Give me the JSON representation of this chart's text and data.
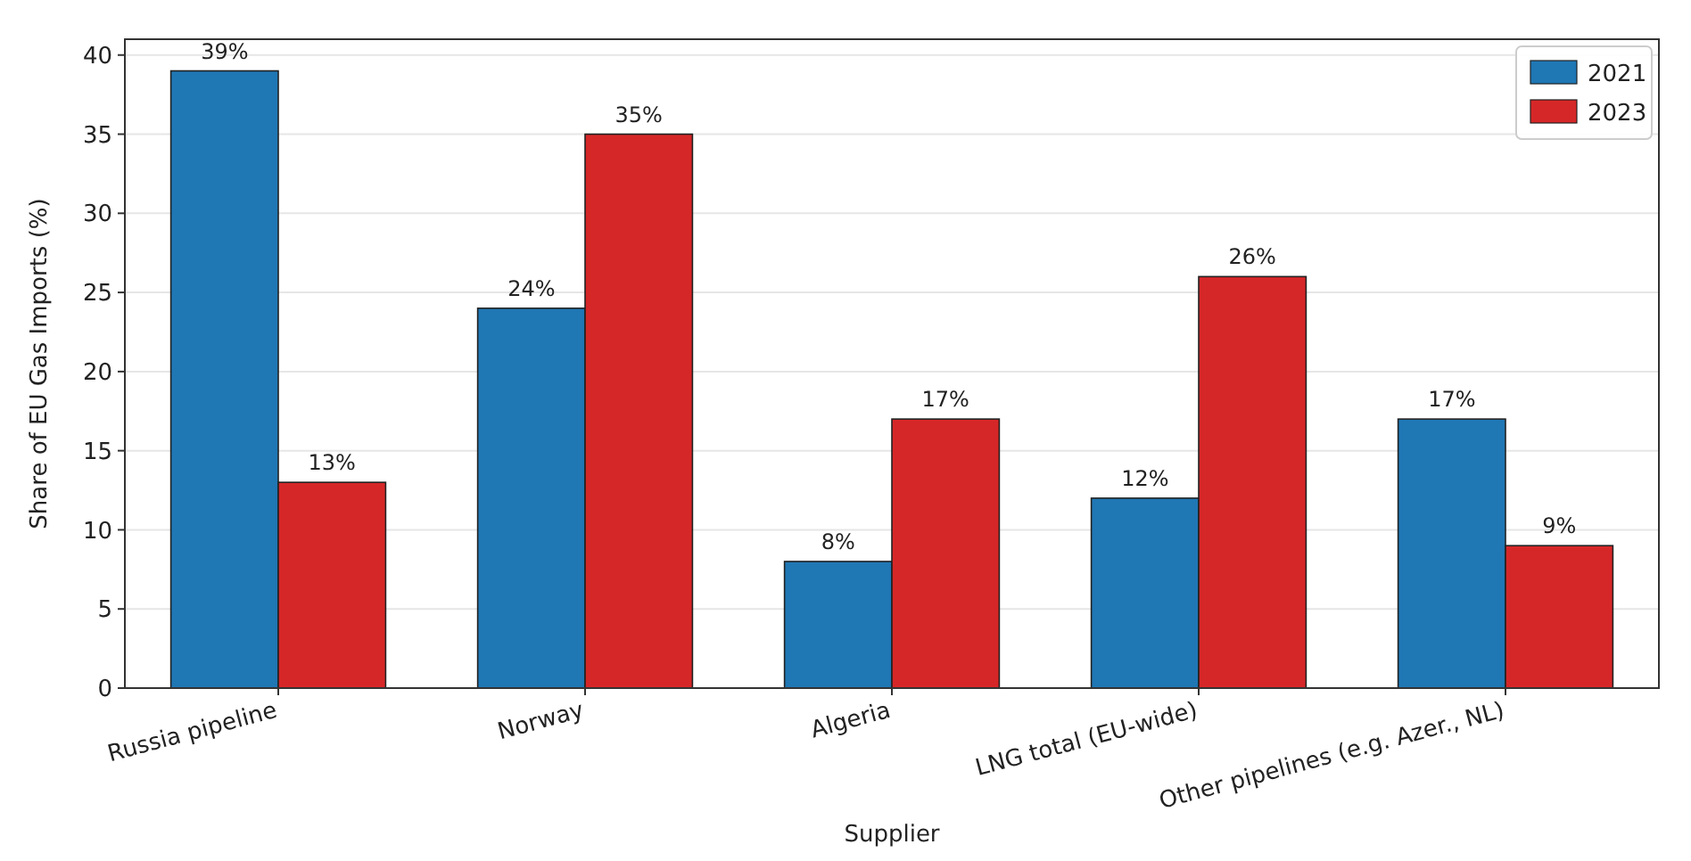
{
  "chart_data": {
    "type": "bar",
    "xlabel": "Supplier",
    "ylabel": "Share of EU Gas Imports (%)",
    "categories": [
      "Russia pipeline",
      "Norway",
      "Algeria",
      "LNG total (EU-wide)",
      "Other pipelines (e.g. Azer., NL)"
    ],
    "series": [
      {
        "name": "2021",
        "color": "#1f77b4",
        "values": [
          39,
          24,
          8,
          12,
          17
        ],
        "value_labels": [
          "39%",
          "24%",
          "8%",
          "12%",
          "17%"
        ]
      },
      {
        "name": "2023",
        "color": "#d62728",
        "values": [
          13,
          35,
          17,
          26,
          9
        ],
        "value_labels": [
          "13%",
          "35%",
          "17%",
          "26%",
          "9%"
        ]
      }
    ],
    "ylim": [
      0,
      41
    ],
    "yticks": [
      0,
      5,
      10,
      15,
      20,
      25,
      30,
      35,
      40
    ],
    "grid": "y",
    "legend": "top right"
  }
}
